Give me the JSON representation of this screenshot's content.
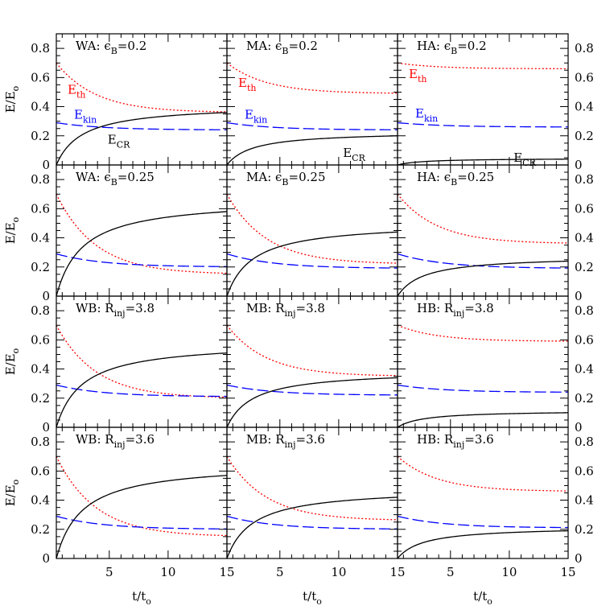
{
  "chart_data": {
    "type": "line",
    "layout": "4x3 grid of line plots",
    "x_range": [
      0.5,
      15
    ],
    "y_range": [
      0,
      0.9
    ],
    "x_ticks": [
      5,
      10,
      15
    ],
    "x_tick_labels": [
      "5",
      "10",
      "15"
    ],
    "y_ticks": [
      0,
      0.2,
      0.4,
      0.6,
      0.8
    ],
    "y_tick_labels": [
      "0",
      "0.2",
      "0.4",
      "0.6",
      "0.8"
    ],
    "xlabel": {
      "main": "t/t",
      "sub": "o"
    },
    "ylabel": {
      "main": "E/E",
      "sub": "o"
    },
    "series_styles": {
      "E_th": {
        "color": "#ff0000",
        "dash": "dotted"
      },
      "E_kin": {
        "color": "#0000ff",
        "dash": "long-dashed"
      },
      "E_CR": {
        "color": "#000000",
        "dash": "solid"
      }
    },
    "series_labels": {
      "E_th": {
        "main": "E",
        "sub": "th"
      },
      "E_kin": {
        "main": "E",
        "sub": "kin"
      },
      "E_CR": {
        "main": "E",
        "sub": "CR"
      }
    },
    "panels": [
      {
        "id": "WA-eB-0.2",
        "title": {
          "prefix": "WA:",
          "symbol": "ϵ",
          "sub": "B",
          "value": "=0.2"
        },
        "E_th": {
          "start": 0.7,
          "end": 0.36
        },
        "E_kin": {
          "start": 0.29,
          "end": 0.24
        },
        "E_CR": {
          "end": 0.36
        },
        "show_labels": true
      },
      {
        "id": "MA-eB-0.2",
        "title": {
          "prefix": "MA:",
          "symbol": "ϵ",
          "sub": "B",
          "value": "=0.2"
        },
        "E_th": {
          "start": 0.7,
          "end": 0.49
        },
        "E_kin": {
          "start": 0.29,
          "end": 0.24
        },
        "E_CR": {
          "end": 0.2
        },
        "show_labels": true
      },
      {
        "id": "HA-eB-0.2",
        "title": {
          "prefix": "HA:",
          "symbol": "ϵ",
          "sub": "B",
          "value": "=0.2"
        },
        "E_th": {
          "start": 0.7,
          "end": 0.66
        },
        "E_kin": {
          "start": 0.29,
          "end": 0.26
        },
        "E_CR": {
          "end": 0.04
        },
        "show_labels": true
      },
      {
        "id": "WA-eB-0.25",
        "title": {
          "prefix": "WA:",
          "symbol": "ϵ",
          "sub": "B",
          "value": "=0.25"
        },
        "E_th": {
          "start": 0.7,
          "end": 0.15
        },
        "E_kin": {
          "start": 0.29,
          "end": 0.2
        },
        "E_CR": {
          "end": 0.58
        },
        "show_labels": false
      },
      {
        "id": "MA-eB-0.25",
        "title": {
          "prefix": "MA:",
          "symbol": "ϵ",
          "sub": "B",
          "value": "=0.25"
        },
        "E_th": {
          "start": 0.7,
          "end": 0.22
        },
        "E_kin": {
          "start": 0.29,
          "end": 0.19
        },
        "E_CR": {
          "end": 0.44
        },
        "show_labels": false
      },
      {
        "id": "HA-eB-0.25",
        "title": {
          "prefix": "HA:",
          "symbol": "ϵ",
          "sub": "B",
          "value": "=0.25"
        },
        "E_th": {
          "start": 0.7,
          "end": 0.36
        },
        "E_kin": {
          "start": 0.29,
          "end": 0.19
        },
        "E_CR": {
          "end": 0.24
        },
        "show_labels": false
      },
      {
        "id": "WB-Rinj-3.8",
        "title": {
          "prefix": "WB:",
          "symbol": "R",
          "sub": "inj",
          "value": "=3.8"
        },
        "E_th": {
          "start": 0.7,
          "end": 0.2
        },
        "E_kin": {
          "start": 0.29,
          "end": 0.21
        },
        "E_CR": {
          "end": 0.51
        },
        "show_labels": false
      },
      {
        "id": "MB-Rinj-3.8",
        "title": {
          "prefix": "MB:",
          "symbol": "R",
          "sub": "inj",
          "value": "=3.8"
        },
        "E_th": {
          "start": 0.7,
          "end": 0.35
        },
        "E_kin": {
          "start": 0.29,
          "end": 0.22
        },
        "E_CR": {
          "end": 0.34
        },
        "show_labels": false
      },
      {
        "id": "HB-Rinj-3.8",
        "title": {
          "prefix": "HB:",
          "symbol": "R",
          "sub": "inj",
          "value": "=3.8"
        },
        "E_th": {
          "start": 0.7,
          "end": 0.59
        },
        "E_kin": {
          "start": 0.29,
          "end": 0.24
        },
        "E_CR": {
          "end": 0.1
        },
        "show_labels": false
      },
      {
        "id": "WB-Rinj-3.6",
        "title": {
          "prefix": "WB:",
          "symbol": "R",
          "sub": "inj",
          "value": "=3.6"
        },
        "E_th": {
          "start": 0.7,
          "end": 0.15
        },
        "E_kin": {
          "start": 0.29,
          "end": 0.2
        },
        "E_CR": {
          "end": 0.57
        },
        "show_labels": false
      },
      {
        "id": "MB-Rinj-3.6",
        "title": {
          "prefix": "MB:",
          "symbol": "R",
          "sub": "inj",
          "value": "=3.6"
        },
        "E_th": {
          "start": 0.7,
          "end": 0.26
        },
        "E_kin": {
          "start": 0.29,
          "end": 0.2
        },
        "E_CR": {
          "end": 0.42
        },
        "show_labels": false
      },
      {
        "id": "HB-Rinj-3.6",
        "title": {
          "prefix": "HB:",
          "symbol": "R",
          "sub": "inj",
          "value": "=3.6"
        },
        "E_th": {
          "start": 0.7,
          "end": 0.46
        },
        "E_kin": {
          "start": 0.29,
          "end": 0.21
        },
        "E_CR": {
          "end": 0.19
        },
        "show_labels": false
      }
    ]
  }
}
